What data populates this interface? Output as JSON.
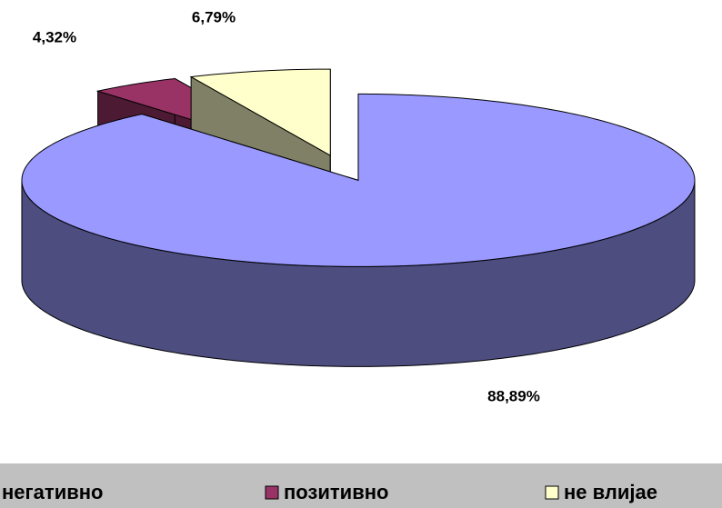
{
  "chart_data": {
    "type": "pie3d",
    "categories": [
      "негативно",
      "позитивно",
      "не влијае"
    ],
    "values": [
      88.89,
      4.32,
      6.79
    ],
    "value_labels": [
      "88,89%",
      "4,32%",
      "6,79%"
    ],
    "colors": [
      "#9999ff",
      "#993366",
      "#ffffcc"
    ],
    "legend": "bottom"
  }
}
